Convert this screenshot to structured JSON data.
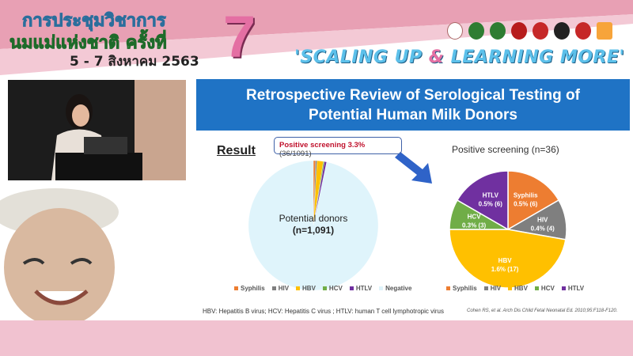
{
  "banner": {
    "thai_line1": "การประชุมวิชาการ",
    "thai_line2": "นมแม่แห่งชาติ ครั้งที่",
    "thai_date": "5 - 7 สิงหาคม 2563",
    "edition": "7",
    "slogan_a": "'SCALING UP ",
    "slogan_amp": "&",
    "slogan_b": " LEARNING MORE'"
  },
  "slide": {
    "title_line1": "Retrospective Review of Serological Testing of",
    "title_line2": "Potential Human Milk Donors",
    "result_heading": "Result",
    "callout_bold": "Positive screening 3.3%",
    "callout_rest": " (36/1091)",
    "footnote": "HBV: Hepatitis B virus; HCV: Hepatitis C virus ; HTLV: human T cell lymphotropic virus",
    "citation": "Cohen RS, et al. Arch Dis Child Fetal Neonatal Ed. 2010;95:F118-F120."
  },
  "chart_data": [
    {
      "type": "pie",
      "center_label": "Potential donors",
      "center_sublabel": "(n=1,091)",
      "legend_position": "bottom",
      "categories": [
        "Syphilis",
        "HIV",
        "HBV",
        "HCV",
        "HTLV",
        "Negative"
      ],
      "values": [
        6,
        4,
        17,
        3,
        6,
        1055
      ],
      "colors": [
        "#ed7d31",
        "#7f7f7f",
        "#ffc000",
        "#70ad47",
        "#7030a0",
        "#dff4fb"
      ]
    },
    {
      "type": "pie",
      "title": "Positive screening (n=36)",
      "legend_position": "bottom",
      "categories": [
        "Syphilis",
        "HIV",
        "HBV",
        "HCV",
        "HTLV"
      ],
      "values": [
        6,
        4,
        17,
        3,
        6
      ],
      "labels": [
        "0.5% (6)",
        "0.4% (4)",
        "1.6% (17)",
        "0.3% (3)",
        "0.5% (6)"
      ],
      "colors": [
        "#ed7d31",
        "#7f7f7f",
        "#ffc000",
        "#70ad47",
        "#7030a0"
      ]
    }
  ]
}
